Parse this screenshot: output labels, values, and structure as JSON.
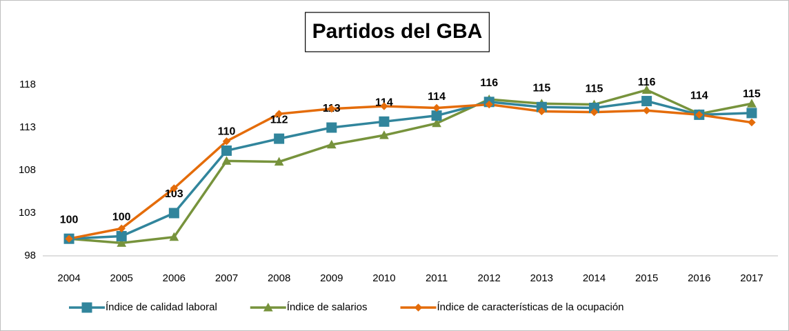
{
  "chart_data": {
    "type": "line",
    "title": "Partidos del GBA",
    "categories": [
      "2004",
      "2005",
      "2006",
      "2007",
      "2008",
      "2009",
      "2010",
      "2011",
      "2012",
      "2013",
      "2014",
      "2015",
      "2016",
      "2017"
    ],
    "series": [
      {
        "name": "Índice de calidad laboral",
        "color": "#31859c",
        "marker": "square",
        "values": [
          100,
          100.3,
          103.0,
          110.3,
          111.7,
          113.0,
          113.7,
          114.4,
          116.0,
          115.4,
          115.3,
          116.1,
          114.5,
          114.7
        ],
        "value_labels": [
          "100",
          "100",
          "103",
          "110",
          "112",
          "113",
          "114",
          "114",
          "116",
          "115",
          "115",
          "116",
          "114",
          "115"
        ]
      },
      {
        "name": "Índice de salarios",
        "color": "#77933c",
        "marker": "triangle",
        "values": [
          100,
          99.5,
          100.2,
          109.1,
          109.0,
          111.0,
          112.1,
          113.5,
          116.3,
          115.8,
          115.7,
          117.4,
          114.6,
          115.8
        ]
      },
      {
        "name": "Índice de características de la ocupación",
        "color": "#e46c0a",
        "marker": "diamond",
        "values": [
          100,
          101.2,
          105.9,
          111.4,
          114.6,
          115.2,
          115.5,
          115.3,
          115.7,
          114.9,
          114.8,
          115.0,
          114.5,
          113.6
        ]
      }
    ],
    "ylim": [
      98,
      123
    ],
    "yticks": [
      98,
      103,
      108,
      113,
      118
    ],
    "grid": false,
    "legend": "bottom"
  }
}
